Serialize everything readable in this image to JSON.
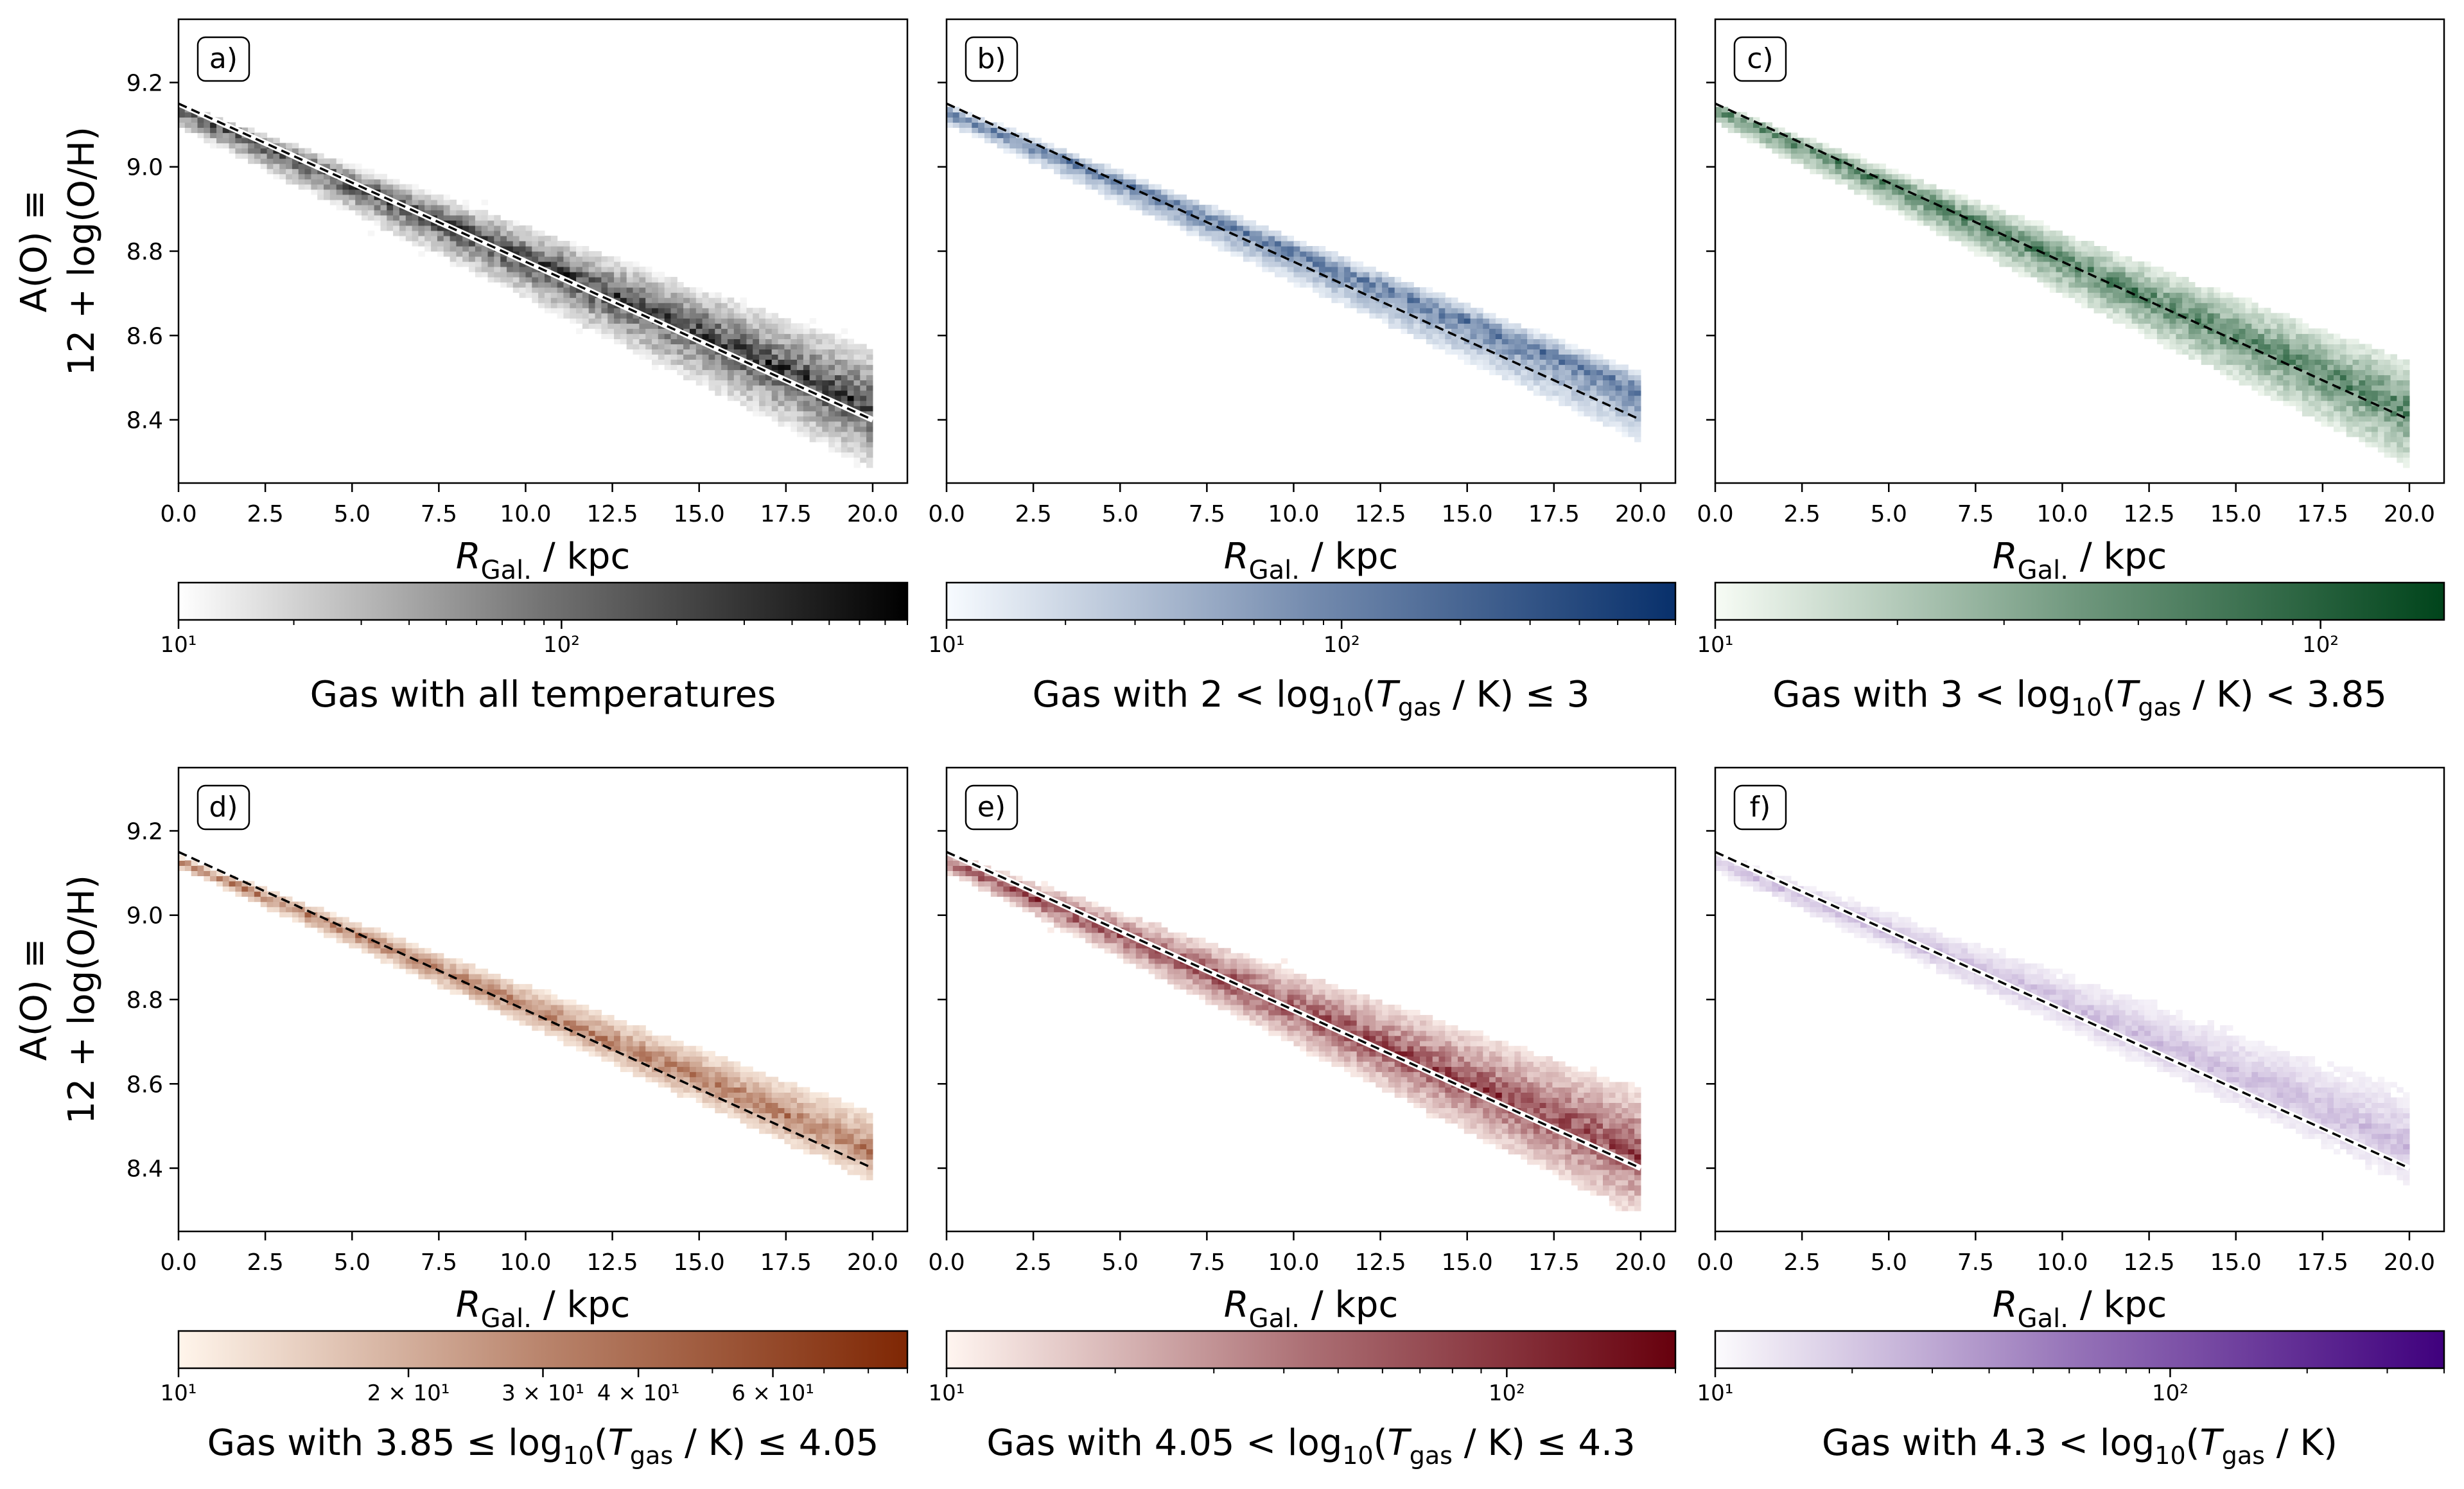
{
  "figure": {
    "y_axis_label_line1": "A(O) ≡",
    "y_axis_label_line2": "12 + log(O/H)",
    "x_axis_label_main": "R",
    "x_axis_label_sub": "Gal.",
    "x_axis_label_unit": " / kpc",
    "fit_line": {
      "x": [
        0,
        20
      ],
      "y": [
        9.15,
        8.4
      ]
    }
  },
  "chart_data": [
    {
      "panel": "a)",
      "type": "heatmap",
      "x_range": [
        0,
        21
      ],
      "y_range": [
        8.25,
        9.35
      ],
      "x_ticks": [
        "0.0",
        "2.5",
        "5.0",
        "7.5",
        "10.0",
        "12.5",
        "15.0",
        "17.5",
        "20.0"
      ],
      "y_ticks": [
        "8.4",
        "8.6",
        "8.8",
        "9.0",
        "9.2"
      ],
      "colormap": {
        "low": "#ffffff",
        "high": "#000000"
      },
      "colorbar": {
        "scale": "log",
        "range": [
          10,
          800
        ],
        "tick_labels": [
          "10¹",
          "10²"
        ],
        "tick_values": [
          10,
          100
        ],
        "label": "Gas with all temperatures"
      },
      "band": {
        "x": [
          0,
          20
        ],
        "center_y": [
          9.14,
          8.43
        ],
        "upper_y": [
          9.15,
          8.58
        ],
        "lower_y": [
          9.09,
          8.27
        ],
        "core_strength": 0.9
      },
      "fit_line_style": "white-halo"
    },
    {
      "panel": "b)",
      "type": "heatmap",
      "x_range": [
        0,
        21
      ],
      "y_range": [
        8.25,
        9.35
      ],
      "x_ticks": [
        "0.0",
        "2.5",
        "5.0",
        "7.5",
        "10.0",
        "12.5",
        "15.0",
        "17.5",
        "20.0"
      ],
      "y_ticks": [
        "8.4",
        "8.6",
        "8.8",
        "9.0",
        "9.2"
      ],
      "colormap": {
        "low": "#f7fbff",
        "high": "#08306b"
      },
      "colorbar": {
        "scale": "log",
        "range": [
          10,
          700
        ],
        "tick_labels": [
          "10¹",
          "10²"
        ],
        "tick_values": [
          10,
          100
        ],
        "label": "Gas with 2 < log₁₀(T_gas / K) ≤ 3"
      },
      "band": {
        "x": [
          0,
          20
        ],
        "center_y": [
          9.13,
          8.47
        ],
        "upper_y": [
          9.15,
          8.52
        ],
        "lower_y": [
          9.1,
          8.34
        ],
        "core_strength": 0.75
      },
      "fit_line_style": "plain"
    },
    {
      "panel": "c)",
      "type": "heatmap",
      "x_range": [
        0,
        21
      ],
      "y_range": [
        8.25,
        9.35
      ],
      "x_ticks": [
        "0.0",
        "2.5",
        "5.0",
        "7.5",
        "10.0",
        "12.5",
        "15.0",
        "17.5",
        "20.0"
      ],
      "y_ticks": [
        "8.4",
        "8.6",
        "8.8",
        "9.0",
        "9.2"
      ],
      "colormap": {
        "low": "#f7fcf5",
        "high": "#00441b"
      },
      "colorbar": {
        "scale": "log",
        "range": [
          10,
          160
        ],
        "tick_labels": [
          "10¹",
          "10²"
        ],
        "tick_values": [
          10,
          100
        ],
        "label": "Gas with 3 < log₁₀(T_gas / K) < 3.85"
      },
      "band": {
        "x": [
          0,
          20
        ],
        "center_y": [
          9.14,
          8.42
        ],
        "upper_y": [
          9.15,
          8.55
        ],
        "lower_y": [
          9.1,
          8.28
        ],
        "core_strength": 0.8
      },
      "fit_line_style": "plain"
    },
    {
      "panel": "d)",
      "type": "heatmap",
      "x_range": [
        0,
        21
      ],
      "y_range": [
        8.25,
        9.35
      ],
      "x_ticks": [
        "0.0",
        "2.5",
        "5.0",
        "7.5",
        "10.0",
        "12.5",
        "15.0",
        "17.5",
        "20.0"
      ],
      "y_ticks": [
        "8.4",
        "8.6",
        "8.8",
        "9.0",
        "9.2"
      ],
      "colormap": {
        "low": "#fff5eb",
        "high": "#7f2704"
      },
      "colorbar": {
        "scale": "log",
        "range": [
          10,
          90
        ],
        "tick_labels": [
          "10¹",
          "2 × 10¹",
          "3 × 10¹",
          "4 × 10¹",
          "6 × 10¹"
        ],
        "tick_values": [
          10,
          20,
          30,
          40,
          60
        ],
        "label": "Gas with 3.85 ≤ log₁₀(T_gas / K) ≤ 4.05"
      },
      "band": {
        "x": [
          0,
          20
        ],
        "center_y": [
          9.13,
          8.44
        ],
        "upper_y": [
          9.14,
          8.54
        ],
        "lower_y": [
          9.11,
          8.36
        ],
        "core_strength": 0.7
      },
      "fit_line_style": "plain"
    },
    {
      "panel": "e)",
      "type": "heatmap",
      "x_range": [
        0,
        21
      ],
      "y_range": [
        8.25,
        9.35
      ],
      "x_ticks": [
        "0.0",
        "2.5",
        "5.0",
        "7.5",
        "10.0",
        "12.5",
        "15.0",
        "17.5",
        "20.0"
      ],
      "y_ticks": [
        "8.4",
        "8.6",
        "8.8",
        "9.0",
        "9.2"
      ],
      "colormap": {
        "low": "#fff5f0",
        "high": "#67000d"
      },
      "colorbar": {
        "scale": "log",
        "range": [
          10,
          200
        ],
        "tick_labels": [
          "10¹",
          "10²"
        ],
        "tick_values": [
          10,
          100
        ],
        "label": "Gas with 4.05 < log₁₀(T_gas / K) ≤ 4.3"
      },
      "band": {
        "x": [
          0,
          20
        ],
        "center_y": [
          9.13,
          8.43
        ],
        "upper_y": [
          9.15,
          8.6
        ],
        "lower_y": [
          9.1,
          8.27
        ],
        "core_strength": 0.85
      },
      "fit_line_style": "white-halo"
    },
    {
      "panel": "f)",
      "type": "heatmap",
      "x_range": [
        0,
        21
      ],
      "y_range": [
        8.25,
        9.35
      ],
      "x_ticks": [
        "0.0",
        "2.5",
        "5.0",
        "7.5",
        "10.0",
        "12.5",
        "15.0",
        "17.5",
        "20.0"
      ],
      "y_ticks": [
        "8.4",
        "8.6",
        "8.8",
        "9.0",
        "9.2"
      ],
      "colormap": {
        "low": "#fcfbfd",
        "high": "#3f007d"
      },
      "colorbar": {
        "scale": "log",
        "range": [
          10,
          400
        ],
        "tick_labels": [
          "10¹",
          "10²"
        ],
        "tick_values": [
          10,
          100
        ],
        "label": "Gas with 4.3 < log₁₀(T_gas / K)"
      },
      "band": {
        "x": [
          0,
          20
        ],
        "center_y": [
          9.13,
          8.45
        ],
        "upper_y": [
          9.15,
          8.6
        ],
        "lower_y": [
          9.1,
          8.35
        ],
        "core_strength": 0.3
      },
      "fit_line_style": "white-halo"
    }
  ]
}
